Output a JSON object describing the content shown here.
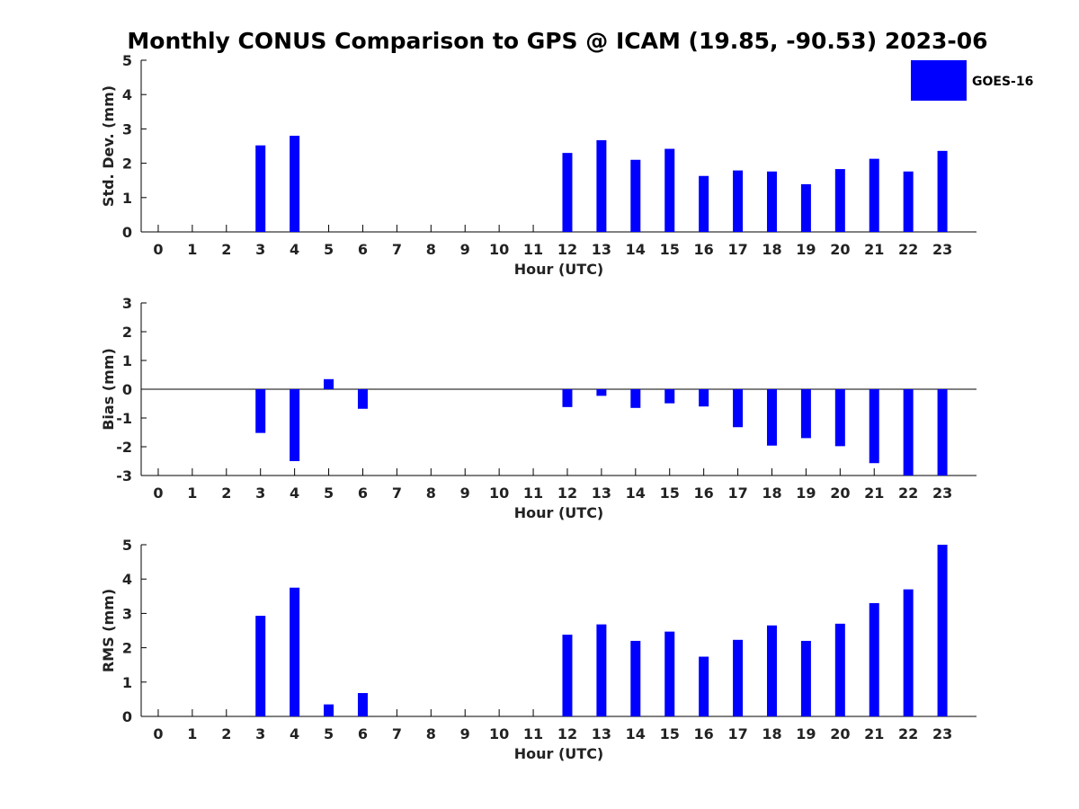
{
  "chart_data": [
    {
      "type": "bar",
      "title": "Monthly CONUS Comparison to GPS @ ICAM (19.85, -90.53) 2023-06",
      "xlabel": "Hour (UTC)",
      "ylabel": "Std. Dev. (mm)",
      "ylim": [
        0,
        5
      ],
      "yticks": [
        0,
        1,
        2,
        3,
        4,
        5
      ],
      "categories": [
        "0",
        "1",
        "2",
        "3",
        "4",
        "5",
        "6",
        "7",
        "8",
        "9",
        "10",
        "11",
        "12",
        "13",
        "14",
        "15",
        "16",
        "17",
        "18",
        "19",
        "20",
        "21",
        "22",
        "23"
      ],
      "series": [
        {
          "name": "GOES-16",
          "color": "#0000ff",
          "values": [
            null,
            null,
            null,
            2.52,
            2.8,
            null,
            null,
            null,
            null,
            null,
            null,
            null,
            2.3,
            2.67,
            2.1,
            2.42,
            1.63,
            1.79,
            1.76,
            1.39,
            1.83,
            2.13,
            1.76,
            2.36
          ]
        }
      ],
      "legend": {
        "position": "top-right",
        "entries": [
          "GOES-16"
        ]
      }
    },
    {
      "type": "bar",
      "xlabel": "Hour (UTC)",
      "ylabel": "Bias (mm)",
      "ylim": [
        -3,
        3
      ],
      "yticks": [
        -3,
        -2,
        -1,
        0,
        1,
        2,
        3
      ],
      "categories": [
        "0",
        "1",
        "2",
        "3",
        "4",
        "5",
        "6",
        "7",
        "8",
        "9",
        "10",
        "11",
        "12",
        "13",
        "14",
        "15",
        "16",
        "17",
        "18",
        "19",
        "20",
        "21",
        "22",
        "23"
      ],
      "series": [
        {
          "name": "GOES-16",
          "color": "#0000ff",
          "values": [
            null,
            null,
            null,
            -1.52,
            -2.5,
            0.35,
            -0.68,
            null,
            null,
            null,
            null,
            null,
            -0.62,
            -0.23,
            -0.65,
            -0.49,
            -0.6,
            -1.32,
            -1.96,
            -1.7,
            -1.98,
            -2.57,
            -3.1,
            -3.2
          ]
        }
      ]
    },
    {
      "type": "bar",
      "xlabel": "Hour (UTC)",
      "ylabel": "RMS (mm)",
      "ylim": [
        0,
        5
      ],
      "yticks": [
        0,
        1,
        2,
        3,
        4,
        5
      ],
      "categories": [
        "0",
        "1",
        "2",
        "3",
        "4",
        "5",
        "6",
        "7",
        "8",
        "9",
        "10",
        "11",
        "12",
        "13",
        "14",
        "15",
        "16",
        "17",
        "18",
        "19",
        "20",
        "21",
        "22",
        "23"
      ],
      "series": [
        {
          "name": "GOES-16",
          "color": "#0000ff",
          "values": [
            null,
            null,
            null,
            2.93,
            3.75,
            0.35,
            0.68,
            null,
            null,
            null,
            null,
            null,
            2.38,
            2.68,
            2.2,
            2.47,
            1.74,
            2.23,
            2.65,
            2.2,
            2.7,
            3.3,
            3.7,
            5.0
          ]
        }
      ]
    }
  ]
}
